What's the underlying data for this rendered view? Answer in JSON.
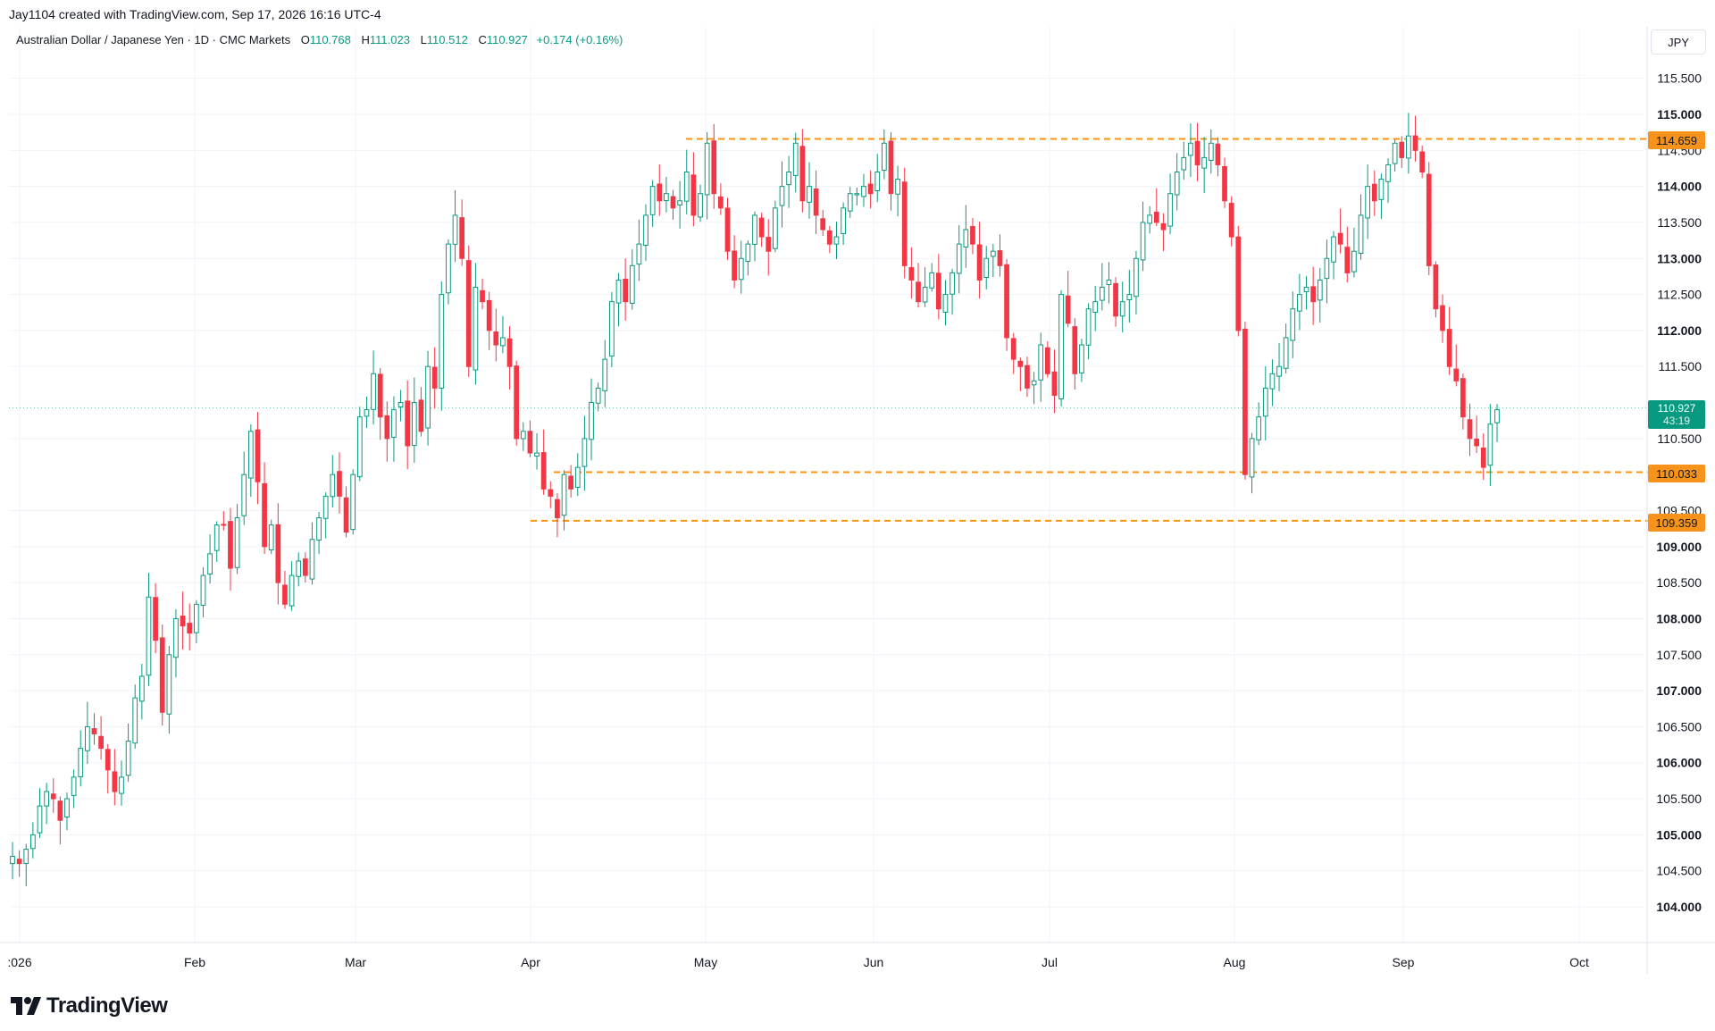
{
  "header": {
    "created_by": "Jay1104 created with TradingView.com, Sep 17, 2026 16:16 UTC-4",
    "symbol": "Australian Dollar / Japanese Yen · 1D · CMC Markets",
    "open_label": "O",
    "open": "110.768",
    "high_label": "H",
    "high": "111.023",
    "low_label": "L",
    "low": "110.512",
    "close_label": "C",
    "close": "110.927",
    "change": "+0.174 (+0.16%)",
    "currency": "JPY"
  },
  "brand": {
    "name": "TradingView",
    "icon": "tradingview-logo-icon"
  },
  "colors": {
    "up": "#089981",
    "down": "#f23645",
    "level": "#f7931a",
    "grid": "#f0f3fa"
  },
  "price_tags": {
    "resistance": "114.659",
    "support_1": "110.033",
    "support_2": "109.359",
    "last_price": "110.927",
    "countdown": "43:19"
  },
  "chart_data": {
    "type": "candlestick",
    "x_ticks": [
      ":026",
      "Feb",
      "Mar",
      "Apr",
      "May",
      "Jun",
      "Jul",
      "Aug",
      "Sep",
      "Oct"
    ],
    "y_ticks": [
      "104.000",
      "104.500",
      "105.000",
      "105.500",
      "106.000",
      "106.500",
      "107.000",
      "107.500",
      "108.000",
      "108.500",
      "109.000",
      "109.500",
      "110.500",
      "111.500",
      "112.000",
      "112.500",
      "113.000",
      "113.500",
      "114.000",
      "114.500",
      "115.000",
      "115.500"
    ],
    "ylim": [
      103.5,
      116.0
    ],
    "grid": true,
    "horizontal_levels": [
      114.659,
      110.033,
      109.359
    ],
    "closes": [
      104.7,
      104.6,
      104.8,
      105.0,
      105.4,
      105.6,
      105.5,
      105.2,
      105.5,
      105.8,
      106.2,
      106.5,
      106.4,
      106.2,
      105.9,
      105.6,
      105.8,
      106.3,
      106.9,
      107.2,
      108.3,
      107.7,
      106.7,
      107.5,
      108.0,
      107.9,
      107.8,
      108.2,
      108.6,
      108.9,
      109.3,
      109.3,
      108.7,
      109.4,
      110.0,
      110.6,
      109.9,
      109.0,
      109.3,
      108.5,
      108.2,
      108.6,
      108.8,
      108.6,
      109.1,
      109.4,
      109.7,
      110.0,
      109.7,
      109.2,
      110.0,
      110.8,
      110.9,
      111.4,
      110.8,
      110.5,
      110.9,
      111.0,
      110.4,
      111.0,
      110.6,
      111.5,
      111.2,
      112.5,
      113.2,
      113.6,
      113.0,
      111.5,
      112.6,
      112.4,
      112.0,
      111.8,
      111.9,
      111.5,
      110.5,
      110.6,
      110.3,
      110.3,
      109.8,
      109.7,
      109.4,
      110.0,
      109.8,
      110.1,
      110.5,
      111.0,
      111.2,
      111.6,
      112.4,
      112.7,
      112.4,
      112.9,
      113.2,
      113.6,
      114.0,
      113.8,
      113.9,
      113.7,
      113.8,
      114.2,
      113.6,
      113.9,
      114.6,
      113.9,
      113.7,
      113.1,
      112.7,
      113.0,
      113.2,
      113.6,
      113.3,
      113.1,
      113.7,
      114.0,
      114.2,
      114.6,
      113.8,
      114.0,
      113.6,
      113.4,
      113.2,
      113.3,
      113.7,
      113.9,
      113.9,
      114.0,
      113.9,
      114.2,
      114.6,
      113.9,
      114.1,
      112.9,
      112.7,
      112.4,
      112.6,
      112.8,
      112.3,
      112.5,
      112.8,
      113.2,
      113.4,
      113.2,
      112.7,
      113.0,
      113.1,
      112.9,
      111.9,
      111.6,
      111.5,
      111.2,
      111.3,
      111.8,
      111.4,
      111.1,
      112.5,
      112.1,
      111.4,
      111.8,
      112.3,
      112.4,
      112.6,
      112.7,
      112.2,
      112.4,
      112.5,
      113.0,
      113.5,
      113.6,
      113.5,
      113.4,
      113.9,
      114.2,
      114.4,
      114.6,
      114.3,
      114.4,
      114.6,
      114.3,
      113.8,
      113.3,
      112.0,
      110.0,
      110.5,
      110.8,
      111.2,
      111.4,
      111.5,
      111.9,
      112.3,
      112.5,
      112.6,
      112.4,
      112.7,
      113.0,
      113.3,
      113.2,
      112.8,
      113.1,
      113.6,
      114.0,
      113.8,
      114.1,
      114.3,
      114.6,
      114.4,
      114.7,
      114.5,
      114.2,
      112.9,
      112.3,
      112.0,
      111.5,
      111.3,
      110.8,
      110.5,
      110.4,
      110.1,
      110.7,
      110.9
    ]
  }
}
